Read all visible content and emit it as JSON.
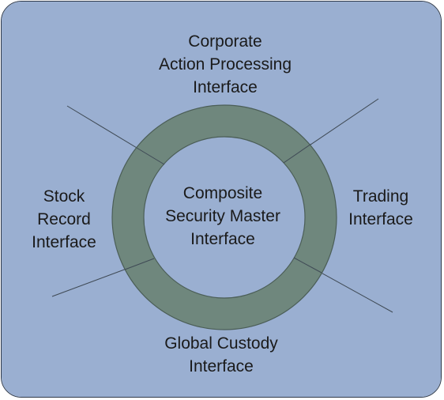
{
  "diagram": {
    "colors": {
      "background": "#9aafd1",
      "ring_fill": "#6f877d",
      "ring_stroke": "#4b5e57",
      "connector": "#3f4a55"
    },
    "center": {
      "label": "Composite\nSecurity Master\nInterface"
    },
    "nodes": {
      "top": {
        "label": "Corporate\nAction Processing\nInterface"
      },
      "left": {
        "label": "Stock\nRecord\nInterface"
      },
      "right": {
        "label": "Trading\nInterface"
      },
      "bottom": {
        "label": "Global Custody\nInterface"
      }
    }
  }
}
